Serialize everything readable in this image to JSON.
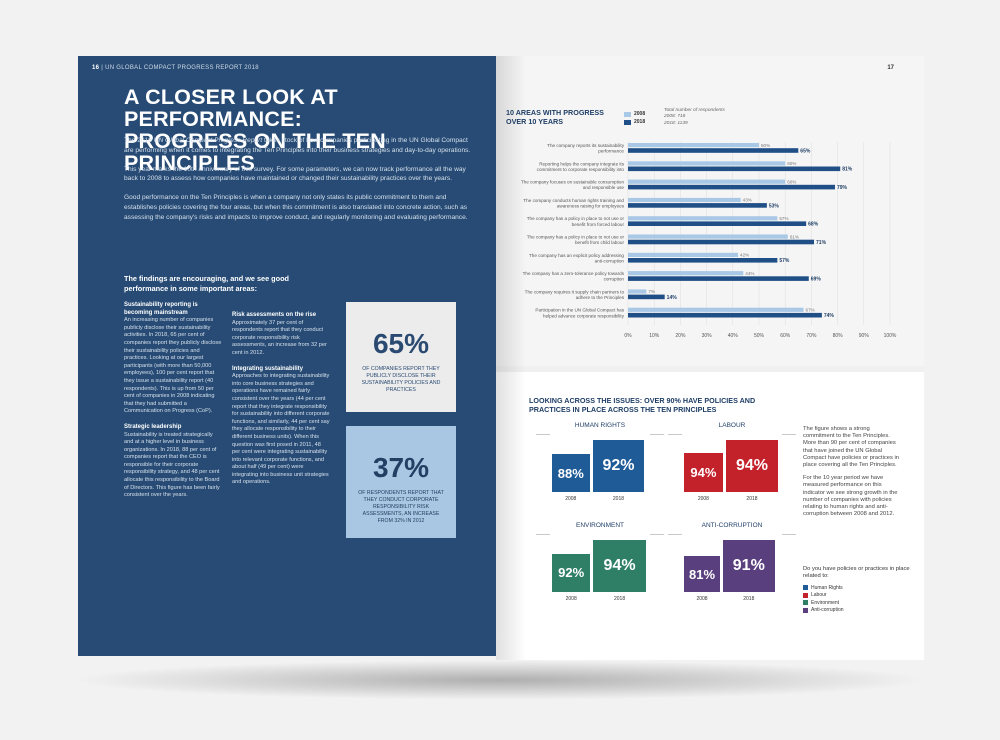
{
  "left_page": {
    "header_num": "16",
    "header_text": "| UN GLOBAL COMPACT PROGRESS REPORT 2018",
    "title_line1": "A CLOSER LOOK AT PERFORMANCE:",
    "title_line2": "PROGRESS ON THE TEN PRINCIPLES",
    "intro_p1_a": "The 2018 ",
    "intro_p1_em": "UN Global Compact Progress Report",
    "intro_p1_b": " takes stock of how companies participating in the UN Global Compact are performing when it comes to integrating the Ten Principles into their business strategies and day-to-day operations.",
    "intro_p2": "This year marks the 10th anniversary of this survey. For some parameters, we can now track performance all the way back to 2008 to assess how companies have maintained or changed their sustainability practices over the years.",
    "intro_p3": "Good performance on the Ten Principles is when a company not only states its public commitment to them and establishes policies covering the four areas, but when this commitment is also translated into concrete action, such as assessing the company's risks and impacts to improve conduct, and regularly monitoring and evaluating performance.",
    "findings": "The findings are encouraging, and we see good performance in some important areas:",
    "s1_title": "Sustainability reporting is becoming mainstream",
    "s1_body": "An increasing number of companies publicly disclose their sustainability activities. In 2018, 65 per cent of companies report they publicly disclose their sustainability policies and practices. Looking at our largest participants (with more than 50,000 employees), 100 per cent report that they issue a sustainability report (40 respondents). This is up from 50 per cent of companies in 2008 indicating that they had submitted a Communication on Progress (CoP).",
    "s2_title": "Strategic leadership",
    "s2_body": "Sustainability is treated strategically and at a higher level in business organizations. In 2018, 88 per cent of companies report that the CEO is responsible for their corporate responsibility strategy, and 48 per cent allocate this responsibility to the Board of Directors. This figure has been fairly consistent over the years.",
    "s3_title": "Risk assessments on the rise",
    "s3_body": "Approximately 37 per cent of respondents report that they conduct corporate responsibility risk assessments, an increase from 32 per cent in 2012.",
    "s4_title": "Integrating sustainability",
    "s4_body": "Approaches to integrating sustainability into core business strategies and operations have remained fairly consistent over the years (44 per cent report that they integrate responsibility for sustainability into different corporate functions, and similarly, 44 per cent say they allocate responsibility to their different business units). When this question was first posed in 2011, 48 per cent were integrating sustainability into relevant corporate functions, and about half (49 per cent) were integrating into business unit strategies and operations.",
    "stat1_value": "65%",
    "stat1_caption": "OF COMPANIES REPORT THEY PUBLICLY DISCLOSE THEIR SUSTAINABILITY POLICIES AND PRACTICES",
    "stat2_value": "37%",
    "stat2_caption": "OF RESPONDENTS REPORT THAT THEY CONDUCT CORPORATE RESPONSIBILITY RISK ASSESSMENTS, AN INCREASE FROM 32% IN 2012"
  },
  "right_page": {
    "page_num": "17",
    "chart_title": "10 AREAS WITH PROGRESS OVER 10 YEARS",
    "legend_2008": "2008",
    "legend_2018": "2018",
    "resp_title": "Total number of respondents",
    "resp_2008": "2008: 718",
    "resp_2018": "2018: 1139",
    "bottom_title": "LOOKING ACROSS THE ISSUES: OVER 90% HAVE POLICIES AND PRACTICES IN PLACE ACROSS THE TEN PRINCIPLES",
    "side_p1": "The figure shows a strong commitment to the Ten Principles. More than 90 per cent of companies that have joined the UN Global Compact have policies or practices in place covering all the Ten Principles.",
    "side_p2": "For the 10 year period we have measured performance on this indicator we see strong growth in the number of companies with policies relating to human rights and anti-corruption between 2008 and 2012.",
    "legend_q": "Do you have policies or practices in place related to:",
    "legend_items": [
      "Human Rights",
      "Labour",
      "Environment",
      "Anti-corruption"
    ]
  },
  "colors": {
    "navy": "#274b74",
    "bar2008": "#a9c8e6",
    "bar2018": "#1f4f86",
    "human_rights": "#1f5b96",
    "labour": "#c3222b",
    "environment": "#2f7f66",
    "anti_corruption": "#5a3f7f"
  },
  "chart_data": [
    {
      "type": "bar",
      "orientation": "horizontal",
      "title": "10 AREAS WITH PROGRESS OVER 10 YEARS",
      "categories": [
        "The company reports its sustainability performance",
        "Reporting helps the company integrate its commitment to corporate responsibility into business operations",
        "The company focuses on sustainable consumption and responsible use",
        "The company conducts human rights training and awareness raising for employees",
        "The company has a policy in place to not use or benefit from forced labour",
        "The company has a policy in place to not use or benefit from child labour",
        "The company has an explicit policy addressing anti-corruption",
        "The company has a zero-tolerance policy towards corruption",
        "The company requires it supply chain partners to adhere to the Principles",
        "Participation in the UN Global Compact has helped advance corporate responsibility internally in the company"
      ],
      "series": [
        {
          "name": "2008",
          "values": [
            50,
            60,
            60,
            43,
            57,
            61,
            42,
            44,
            7,
            67
          ]
        },
        {
          "name": "2018",
          "values": [
            65,
            81,
            79,
            53,
            68,
            71,
            57,
            69,
            14,
            74
          ]
        }
      ],
      "x_ticks": [
        "0%",
        "10%",
        "20%",
        "30%",
        "40%",
        "50%",
        "60%",
        "70%",
        "80%",
        "90%",
        "100%"
      ],
      "xlim": [
        0,
        100
      ]
    },
    {
      "type": "table",
      "title": "LOOKING ACROSS THE ISSUES: OVER 90% HAVE POLICIES AND PRACTICES IN PLACE ACROSS THE TEN PRINCIPLES",
      "panels": [
        {
          "name": "HUMAN RIGHTS",
          "v2008": 88,
          "v2018": 92,
          "label2008": "88%",
          "label2018": "92%",
          "year1": "2008",
          "year2": "2018",
          "color": "#1f5b96"
        },
        {
          "name": "LABOUR",
          "v2008": 94,
          "v2018": 94,
          "label2008": "94%",
          "label2018": "94%",
          "year1": "2008",
          "year2": "2018",
          "color": "#c3222b"
        },
        {
          "name": "ENVIRONMENT",
          "v2008": 92,
          "v2018": 94,
          "label2008": "92%",
          "label2018": "94%",
          "year1": "2008",
          "year2": "2018",
          "color": "#2f7f66"
        },
        {
          "name": "ANTI-CORRUPTION",
          "v2008": 81,
          "v2018": 91,
          "label2008": "81%",
          "label2018": "91%",
          "year1": "2008",
          "year2": "2018",
          "color": "#5a3f7f"
        }
      ]
    }
  ]
}
